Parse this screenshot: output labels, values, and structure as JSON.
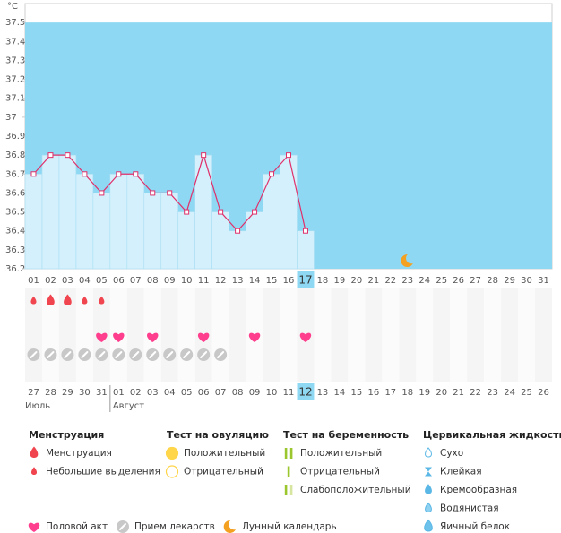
{
  "chart_data": {
    "type": "line",
    "y_label": "°C",
    "x": [
      "01",
      "02",
      "03",
      "04",
      "05",
      "06",
      "07",
      "08",
      "09",
      "10",
      "11",
      "12",
      "13",
      "14",
      "15",
      "16",
      "17",
      "18",
      "19",
      "20",
      "21",
      "22",
      "23",
      "24",
      "25",
      "26",
      "27",
      "28",
      "29",
      "30",
      "31"
    ],
    "series": [
      {
        "color": "#e0306a",
        "values": [
          36.7,
          36.8,
          36.8,
          36.7,
          36.6,
          36.7,
          36.7,
          36.6,
          36.6,
          36.5,
          36.8,
          36.5,
          36.4,
          36.5,
          36.7,
          36.8,
          36.4,
          null,
          null,
          null,
          null,
          null,
          null,
          null,
          null,
          null,
          null,
          null,
          null,
          null,
          null
        ]
      }
    ],
    "ylim": [
      36.2,
      37.6
    ],
    "yticks": [
      36.2,
      36.3,
      36.4,
      36.5,
      36.6,
      36.7,
      36.8,
      36.9,
      37,
      37.1,
      37.2,
      37.3,
      37.4,
      37.5
    ],
    "highlight_day": "17",
    "moon_day": "23",
    "menstruation": [
      "light",
      "heavy",
      "heavy",
      "light",
      "light",
      null,
      null,
      null,
      null,
      null,
      null,
      null,
      null,
      null,
      null,
      null,
      null,
      null,
      null,
      null,
      null,
      null,
      null,
      null,
      null,
      null,
      null,
      null,
      null,
      null,
      null
    ],
    "intercourse": [
      false,
      false,
      false,
      false,
      true,
      true,
      false,
      true,
      false,
      false,
      true,
      false,
      false,
      true,
      false,
      false,
      true,
      false,
      false,
      false,
      false,
      false,
      false,
      false,
      false,
      false,
      false,
      false,
      false,
      false,
      false
    ],
    "medication": [
      true,
      true,
      true,
      true,
      true,
      true,
      true,
      true,
      true,
      true,
      true,
      true,
      false,
      false,
      false,
      false,
      false,
      false,
      false,
      false,
      false,
      false,
      false,
      false,
      false,
      false,
      false,
      false,
      false,
      false,
      false
    ],
    "cycle_dates": [
      "27",
      "28",
      "29",
      "30",
      "31",
      "01",
      "02",
      "03",
      "04",
      "05",
      "06",
      "07",
      "08",
      "09",
      "10",
      "11",
      "12",
      "13",
      "14",
      "15",
      "16",
      "17",
      "18",
      "19",
      "20",
      "21",
      "22",
      "23",
      "24",
      "25",
      "26"
    ],
    "weekend_dates": [
      false,
      false,
      false,
      false,
      false,
      true,
      true,
      false,
      false,
      false,
      false,
      false,
      true,
      true,
      false,
      false,
      false,
      false,
      false,
      true,
      true,
      false,
      false,
      false,
      false,
      false,
      true,
      true,
      false,
      false,
      false
    ],
    "highlight_date": "12",
    "months": [
      {
        "label": "Июль",
        "start": "27"
      },
      {
        "label": "Август",
        "start": "01"
      }
    ]
  },
  "legend": {
    "groups": [
      {
        "title": "Менструация",
        "items": [
          "Менструация",
          "Небольшие выделения"
        ]
      },
      {
        "title": "Тест на овуляцию",
        "items": [
          "Положительный",
          "Отрицательный"
        ]
      },
      {
        "title": "Тест на беременность",
        "items": [
          "Положительный",
          "Отрицательный",
          "Слабоположительный"
        ]
      },
      {
        "title": "Цервикальная жидкость",
        "items": [
          "Сухо",
          "Клейкая",
          "Кремообразная",
          "Водянистая",
          "Яичный белок"
        ]
      }
    ],
    "bottom": [
      "Половой акт",
      "Прием лекарств",
      "Лунный календарь"
    ]
  }
}
